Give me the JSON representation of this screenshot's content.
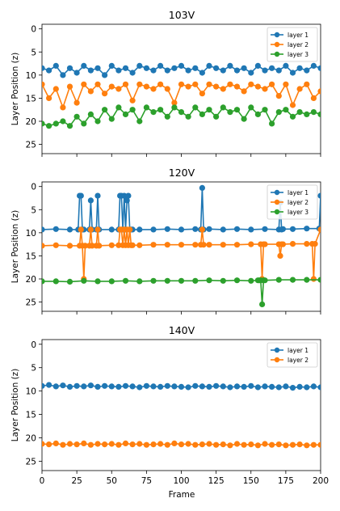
{
  "chart_data": [
    {
      "type": "line",
      "title": "103V",
      "xlabel": "",
      "ylabel": "Layer Position (z)",
      "xlim": [
        0,
        200
      ],
      "ylim": [
        27,
        -1
      ],
      "y_inverted": true,
      "xticks": [
        0,
        25,
        50,
        75,
        100,
        125,
        150,
        175,
        200
      ],
      "xtick_labels_visible": false,
      "yticks": [
        0,
        5,
        10,
        15,
        20,
        25
      ],
      "legend_position": "top-right",
      "marker": "circle",
      "series": [
        {
          "name": "layer 1",
          "color": "#1f77b4",
          "x": [
            0,
            5,
            10,
            15,
            20,
            25,
            30,
            35,
            40,
            45,
            50,
            55,
            60,
            65,
            70,
            75,
            80,
            85,
            90,
            95,
            100,
            105,
            110,
            115,
            120,
            125,
            130,
            135,
            140,
            145,
            150,
            155,
            160,
            165,
            170,
            175,
            180,
            185,
            190,
            195,
            200
          ],
          "y": [
            8.5,
            9.0,
            8.0,
            10.0,
            8.5,
            9.5,
            8.0,
            9.0,
            8.5,
            10.0,
            8.0,
            9.0,
            8.5,
            9.5,
            8.0,
            8.5,
            9.0,
            8.0,
            9.0,
            8.5,
            8.0,
            9.0,
            8.5,
            9.5,
            8.0,
            8.5,
            9.0,
            8.0,
            9.0,
            8.5,
            9.5,
            8.0,
            9.0,
            8.5,
            9.0,
            8.0,
            9.5,
            8.5,
            9.0,
            8.0,
            8.5
          ]
        },
        {
          "name": "layer 2",
          "color": "#ff7f0e",
          "x": [
            0,
            5,
            10,
            15,
            20,
            25,
            30,
            35,
            40,
            45,
            50,
            55,
            60,
            65,
            70,
            75,
            80,
            85,
            90,
            95,
            100,
            105,
            110,
            115,
            120,
            125,
            130,
            135,
            140,
            145,
            150,
            155,
            160,
            165,
            170,
            175,
            180,
            185,
            190,
            195,
            200
          ],
          "y": [
            12.0,
            15.0,
            13.0,
            17.0,
            12.5,
            16.0,
            12.0,
            13.5,
            12.0,
            14.0,
            12.5,
            13.0,
            12.0,
            15.5,
            12.0,
            12.5,
            13.0,
            12.0,
            13.0,
            16.0,
            12.0,
            12.5,
            12.0,
            14.0,
            12.0,
            12.5,
            13.0,
            12.0,
            12.5,
            13.5,
            12.0,
            12.5,
            13.0,
            12.0,
            14.5,
            12.0,
            16.5,
            13.0,
            12.0,
            15.0,
            13.5
          ]
        },
        {
          "name": "layer 3",
          "color": "#2ca02c",
          "x": [
            0,
            5,
            10,
            15,
            20,
            25,
            30,
            35,
            40,
            45,
            50,
            55,
            60,
            65,
            70,
            75,
            80,
            85,
            90,
            95,
            100,
            105,
            110,
            115,
            120,
            125,
            130,
            135,
            140,
            145,
            150,
            155,
            160,
            165,
            170,
            175,
            180,
            185,
            190,
            195,
            200
          ],
          "y": [
            20.5,
            21.0,
            20.5,
            20.0,
            21.0,
            19.0,
            20.5,
            18.5,
            20.0,
            17.5,
            19.5,
            17.0,
            18.5,
            17.5,
            20.0,
            17.0,
            18.0,
            17.5,
            19.0,
            17.0,
            18.0,
            19.0,
            17.0,
            18.5,
            17.5,
            19.0,
            17.0,
            18.0,
            17.5,
            19.5,
            17.0,
            18.5,
            17.5,
            20.5,
            18.0,
            17.5,
            19.0,
            18.0,
            18.5,
            18.0,
            18.5
          ]
        }
      ]
    },
    {
      "type": "line",
      "title": "120V",
      "xlabel": "",
      "ylabel": "Layer Position (z)",
      "xlim": [
        0,
        200
      ],
      "ylim": [
        27,
        -1
      ],
      "y_inverted": true,
      "xticks": [
        0,
        25,
        50,
        75,
        100,
        125,
        150,
        175,
        200
      ],
      "xtick_labels_visible": false,
      "yticks": [
        0,
        5,
        10,
        15,
        20,
        25
      ],
      "legend_position": "top-right",
      "marker": "circle",
      "series": [
        {
          "name": "layer 1",
          "color": "#1f77b4",
          "x": [
            0,
            10,
            20,
            26,
            27,
            28,
            29,
            30,
            34,
            35,
            36,
            39,
            40,
            41,
            50,
            55,
            56,
            57,
            58,
            59,
            60,
            61,
            62,
            63,
            64,
            65,
            70,
            80,
            90,
            100,
            110,
            114,
            115,
            116,
            120,
            130,
            140,
            150,
            160,
            170,
            171,
            172,
            173,
            180,
            190,
            199,
            200
          ],
          "y": [
            9.3,
            9.2,
            9.3,
            9.3,
            2.0,
            2.0,
            9.3,
            9.3,
            9.3,
            3.0,
            9.3,
            9.3,
            2.0,
            9.3,
            9.3,
            9.3,
            2.0,
            2.0,
            9.3,
            2.0,
            9.3,
            3.0,
            2.0,
            9.3,
            9.3,
            9.3,
            9.3,
            9.3,
            9.2,
            9.3,
            9.2,
            9.3,
            0.3,
            9.3,
            9.2,
            9.3,
            9.2,
            9.3,
            9.2,
            9.3,
            3.5,
            9.3,
            9.2,
            9.2,
            9.1,
            9.1,
            2.0
          ]
        },
        {
          "name": "layer 2",
          "color": "#ff7f0e",
          "x": [
            0,
            10,
            20,
            27,
            28,
            29,
            30,
            31,
            34,
            35,
            36,
            39,
            40,
            41,
            50,
            55,
            56,
            57,
            58,
            59,
            60,
            61,
            62,
            63,
            64,
            65,
            70,
            80,
            90,
            100,
            110,
            114,
            115,
            116,
            120,
            130,
            140,
            150,
            157,
            158,
            159,
            160,
            170,
            171,
            172,
            173,
            180,
            190,
            194,
            195,
            196,
            200
          ],
          "y": [
            12.8,
            12.7,
            12.8,
            12.8,
            9.3,
            12.8,
            20.0,
            12.8,
            12.8,
            9.3,
            12.8,
            12.8,
            9.3,
            12.8,
            12.7,
            12.7,
            9.3,
            9.3,
            12.7,
            9.3,
            12.7,
            9.3,
            12.7,
            9.3,
            12.7,
            12.7,
            12.7,
            12.6,
            12.6,
            12.6,
            12.6,
            12.6,
            9.3,
            12.6,
            12.6,
            12.6,
            12.6,
            12.5,
            12.5,
            20.0,
            12.5,
            12.5,
            12.5,
            15.0,
            12.5,
            12.5,
            12.4,
            12.4,
            12.4,
            20.0,
            12.4,
            9.3
          ]
        },
        {
          "name": "layer 3",
          "color": "#2ca02c",
          "x": [
            0,
            10,
            20,
            30,
            40,
            50,
            60,
            70,
            80,
            90,
            100,
            110,
            120,
            130,
            140,
            150,
            155,
            156,
            157,
            158,
            159,
            160,
            170,
            180,
            190,
            200
          ],
          "y": [
            20.5,
            20.5,
            20.6,
            20.4,
            20.5,
            20.5,
            20.4,
            20.5,
            20.4,
            20.4,
            20.4,
            20.4,
            20.3,
            20.4,
            20.3,
            20.4,
            20.3,
            20.3,
            20.3,
            25.5,
            20.3,
            20.3,
            20.2,
            20.2,
            20.2,
            20.2
          ]
        }
      ]
    },
    {
      "type": "line",
      "title": "140V",
      "xlabel": "Frame",
      "ylabel": "Layer Position (z)",
      "xlim": [
        0,
        200
      ],
      "ylim": [
        27,
        -1
      ],
      "y_inverted": true,
      "xticks": [
        0,
        25,
        50,
        75,
        100,
        125,
        150,
        175,
        200
      ],
      "xtick_labels_visible": true,
      "yticks": [
        0,
        5,
        10,
        15,
        20,
        25
      ],
      "legend_position": "top-right",
      "marker": "circle",
      "series": [
        {
          "name": "layer 1",
          "color": "#1f77b4",
          "x": [
            0,
            5,
            10,
            15,
            20,
            25,
            30,
            35,
            40,
            45,
            50,
            55,
            60,
            65,
            70,
            75,
            80,
            85,
            90,
            95,
            100,
            105,
            110,
            115,
            120,
            125,
            130,
            135,
            140,
            145,
            150,
            155,
            160,
            165,
            170,
            175,
            180,
            185,
            190,
            195,
            200
          ],
          "y": [
            8.9,
            8.7,
            9.0,
            8.8,
            9.1,
            8.9,
            9.0,
            8.8,
            9.1,
            8.9,
            9.0,
            9.1,
            8.9,
            9.0,
            9.2,
            8.9,
            9.0,
            9.1,
            8.9,
            9.0,
            9.1,
            9.2,
            8.9,
            9.0,
            9.1,
            8.9,
            9.0,
            9.2,
            9.0,
            9.1,
            8.9,
            9.2,
            9.0,
            9.1,
            9.2,
            9.0,
            9.3,
            9.1,
            9.2,
            9.0,
            9.2
          ]
        },
        {
          "name": "layer 2",
          "color": "#ff7f0e",
          "x": [
            0,
            5,
            10,
            15,
            20,
            25,
            30,
            35,
            40,
            45,
            50,
            55,
            60,
            65,
            70,
            75,
            80,
            85,
            90,
            95,
            100,
            105,
            110,
            115,
            120,
            125,
            130,
            135,
            140,
            145,
            150,
            155,
            160,
            165,
            170,
            175,
            180,
            185,
            190,
            195,
            200
          ],
          "y": [
            21.3,
            21.4,
            21.2,
            21.5,
            21.3,
            21.4,
            21.2,
            21.5,
            21.3,
            21.4,
            21.3,
            21.5,
            21.2,
            21.4,
            21.3,
            21.5,
            21.4,
            21.3,
            21.5,
            21.2,
            21.4,
            21.3,
            21.5,
            21.4,
            21.3,
            21.5,
            21.4,
            21.6,
            21.3,
            21.5,
            21.4,
            21.6,
            21.3,
            21.5,
            21.4,
            21.6,
            21.5,
            21.4,
            21.6,
            21.5,
            21.5
          ]
        }
      ]
    }
  ]
}
